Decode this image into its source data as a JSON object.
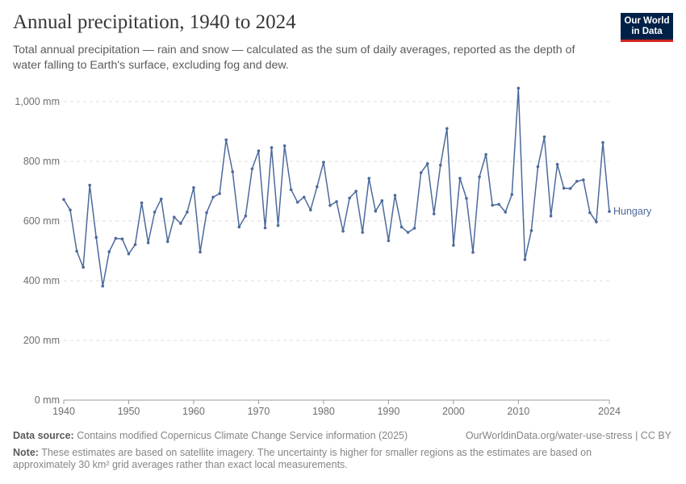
{
  "header": {
    "title": "Annual precipitation, 1940 to 2024",
    "subtitle": "Total annual precipitation — rain and snow — calculated as the sum of daily averages, reported as the depth of water falling to Earth's surface, excluding fog and dew.",
    "logo_line1": "Our World",
    "logo_line2": "in Data"
  },
  "footer": {
    "source_label": "Data source:",
    "source_text": "Contains modified Copernicus Climate Change Service information (2025)",
    "url_text": "OurWorldinData.org/water-use-stress | CC BY",
    "note_label": "Note:",
    "note_text": "These estimates are based on satellite imagery. The uncertainty is higher for smaller regions as the estimates are based on approximately 30 km² grid averages rather than exact local measurements."
  },
  "colors": {
    "series": "#4c6a9c",
    "grid": "#dddddd",
    "axis": "#999999"
  },
  "chart_data": {
    "type": "line",
    "title": "Annual precipitation, 1940 to 2024",
    "xlabel": "",
    "ylabel": "",
    "xlim": [
      1940,
      2024
    ],
    "ylim": [
      0,
      1000
    ],
    "y_ticks": [
      0,
      200,
      400,
      600,
      800,
      1000
    ],
    "y_tick_labels": [
      "0 mm",
      "200 mm",
      "400 mm",
      "600 mm",
      "800 mm",
      "1,000 mm"
    ],
    "x_ticks": [
      1940,
      1950,
      1960,
      1970,
      1980,
      1990,
      2000,
      2010,
      2024
    ],
    "x_tick_labels": [
      "1940",
      "1950",
      "1960",
      "1970",
      "1980",
      "1990",
      "2000",
      "2010",
      "2024"
    ],
    "grid": "horizontal dashed",
    "series": [
      {
        "name": "Hungary",
        "x": [
          1940,
          1941,
          1942,
          1943,
          1944,
          1945,
          1946,
          1947,
          1948,
          1949,
          1950,
          1951,
          1952,
          1953,
          1954,
          1955,
          1956,
          1957,
          1958,
          1959,
          1960,
          1961,
          1962,
          1963,
          1964,
          1965,
          1966,
          1967,
          1968,
          1969,
          1970,
          1971,
          1972,
          1973,
          1974,
          1975,
          1976,
          1977,
          1978,
          1979,
          1980,
          1981,
          1982,
          1983,
          1984,
          1985,
          1986,
          1987,
          1988,
          1989,
          1990,
          1991,
          1992,
          1993,
          1994,
          1995,
          1996,
          1997,
          1998,
          1999,
          2000,
          2001,
          2002,
          2003,
          2004,
          2005,
          2006,
          2007,
          2008,
          2009,
          2010,
          2011,
          2012,
          2013,
          2014,
          2015,
          2016,
          2017,
          2018,
          2019,
          2020,
          2021,
          2022,
          2023,
          2024
        ],
        "values": [
          672,
          637,
          499,
          445,
          720,
          545,
          382,
          497,
          542,
          540,
          490,
          521,
          661,
          527,
          630,
          674,
          531,
          613,
          592,
          630,
          712,
          496,
          628,
          680,
          692,
          872,
          765,
          580,
          617,
          775,
          835,
          577,
          846,
          585,
          852,
          705,
          663,
          680,
          637,
          715,
          797,
          652,
          665,
          566,
          677,
          700,
          562,
          743,
          633,
          668,
          534,
          686,
          580,
          562,
          576,
          762,
          792,
          624,
          787,
          910,
          519,
          743,
          676,
          495,
          748,
          823,
          653,
          656,
          630,
          689,
          1045,
          471,
          568,
          782,
          882,
          617,
          790,
          710,
          709,
          733,
          738,
          628,
          597,
          863,
          632
        ]
      }
    ]
  }
}
